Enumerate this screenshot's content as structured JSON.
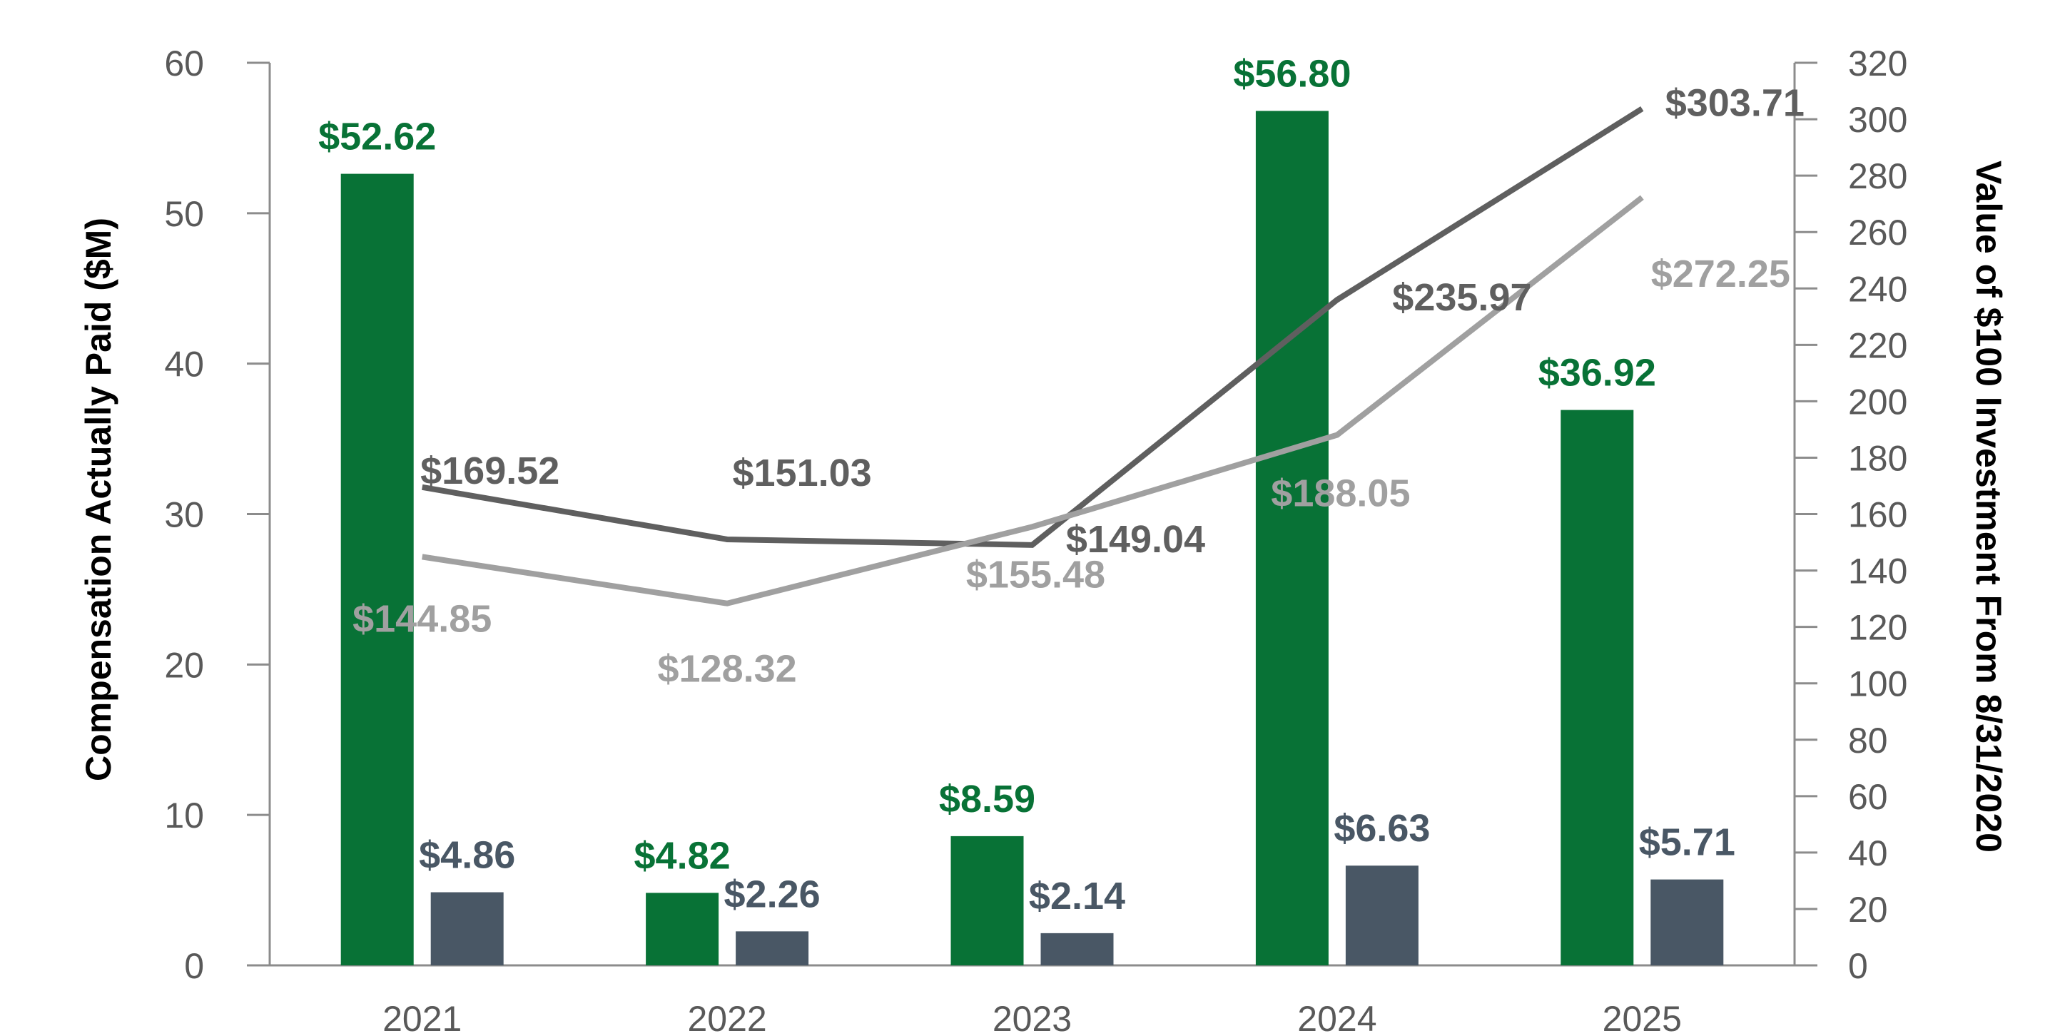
{
  "chart_data": {
    "type": "bar",
    "categories": [
      "2021",
      "2022",
      "2023",
      "2024",
      "2025"
    ],
    "series": [
      {
        "kind": "bar",
        "axis": "left",
        "color": "#087236",
        "values": [
          52.62,
          4.82,
          8.59,
          56.8,
          36.92
        ],
        "labels": [
          "$52.62",
          "$4.82",
          "$8.59",
          "$56.80",
          "$36.92"
        ]
      },
      {
        "kind": "bar",
        "axis": "left",
        "color": "#495765",
        "values": [
          4.86,
          2.26,
          2.14,
          6.63,
          5.71
        ],
        "labels": [
          "$4.86",
          "$2.26",
          "$2.14",
          "$6.63",
          "$5.71"
        ]
      },
      {
        "kind": "line",
        "axis": "right",
        "color": "#5f5f5f",
        "values": [
          169.52,
          151.03,
          149.04,
          235.97,
          303.71
        ],
        "labels": [
          "$169.52",
          "$151.03",
          "$149.04",
          "$235.97",
          "$303.71"
        ]
      },
      {
        "kind": "line",
        "axis": "right",
        "color": "#a0a0a0",
        "values": [
          144.85,
          128.32,
          155.48,
          188.05,
          272.25
        ],
        "labels": [
          "$144.85",
          "$128.32",
          "$155.48",
          "$188.05",
          "$272.25"
        ]
      }
    ],
    "ylabel": "Compensation Actually Paid ($M)",
    "y2label": "Value of $100 Investment From 8/31/2020",
    "ylim": [
      0,
      60
    ],
    "y2lim": [
      0,
      320
    ],
    "yticks": [
      0,
      10,
      20,
      30,
      40,
      50,
      60
    ],
    "y2ticks": [
      0,
      20,
      40,
      60,
      80,
      100,
      120,
      140,
      160,
      180,
      200,
      220,
      240,
      260,
      280,
      300,
      320
    ],
    "grid": false,
    "legend": "none"
  }
}
